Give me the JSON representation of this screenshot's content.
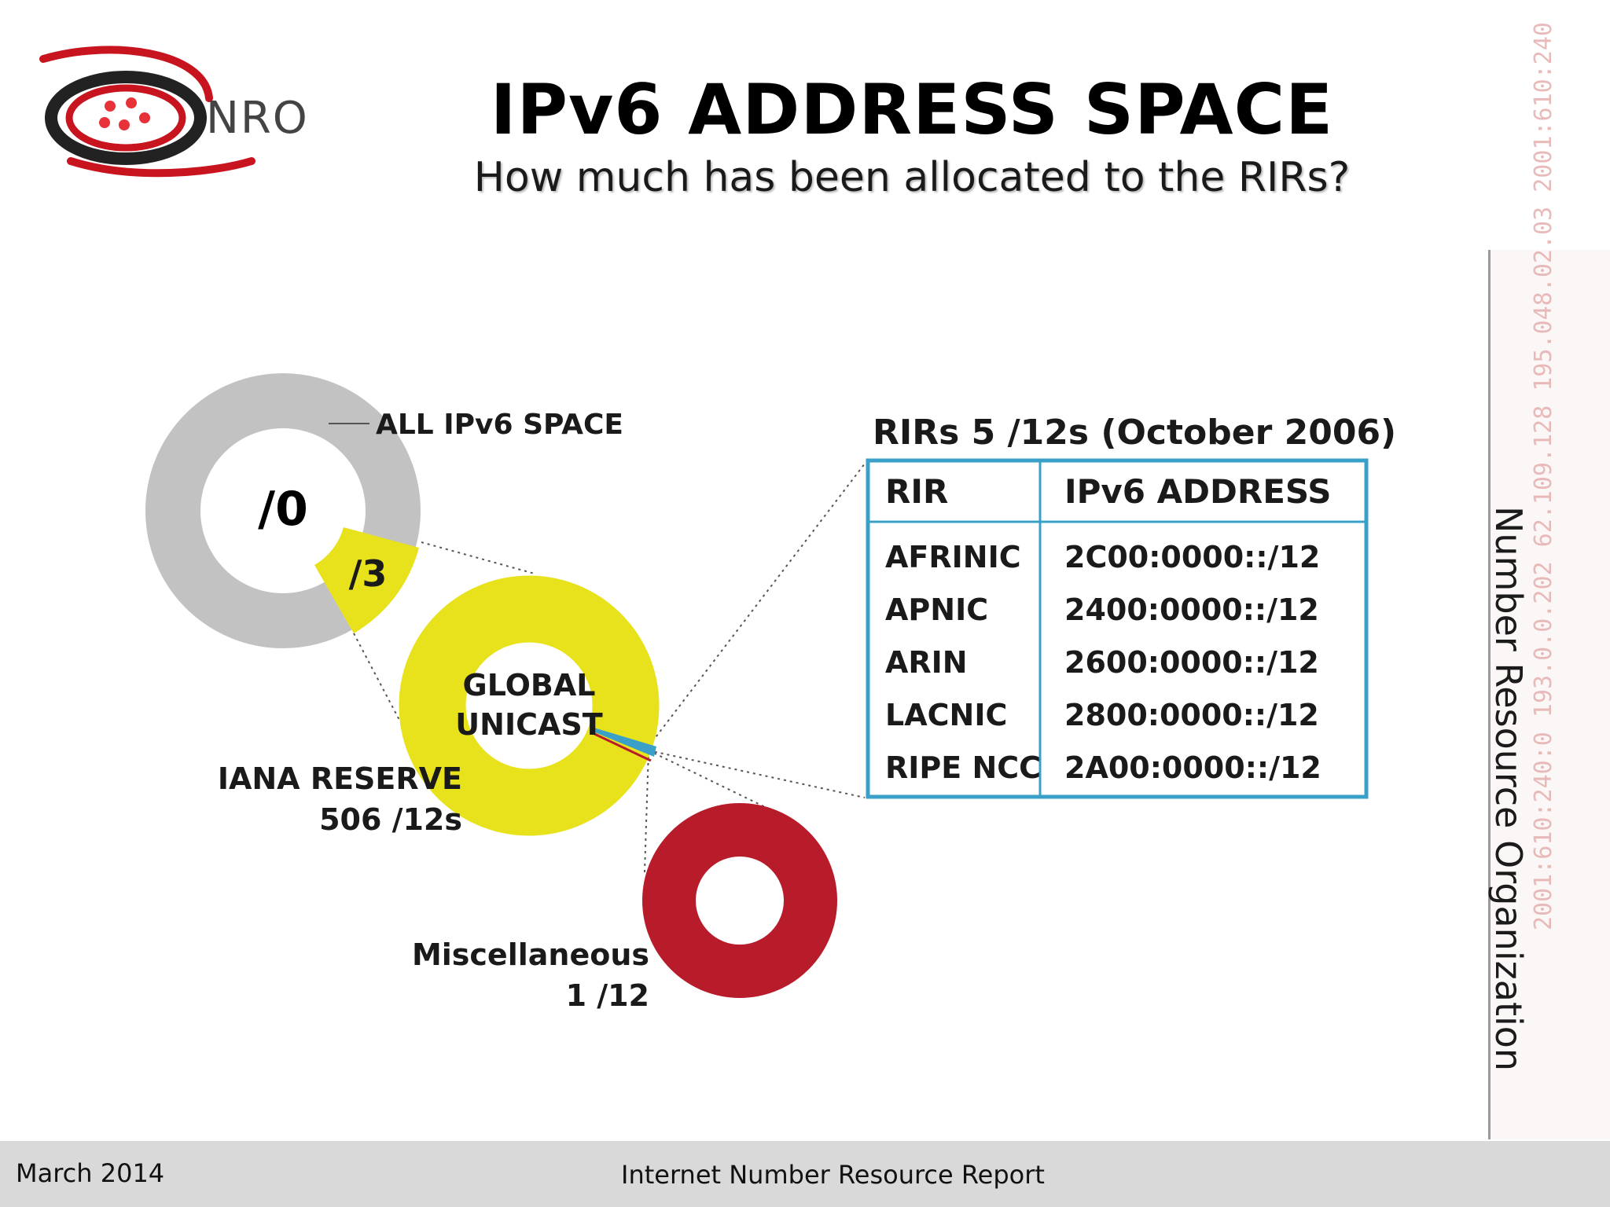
{
  "logo": {
    "text": "NRO"
  },
  "title": "IPv6 ADDRESS SPACE",
  "subtitle": "How much has been allocated to the RIRs?",
  "diagram": {
    "all_space_label": "ALL IPv6 SPACE",
    "root_label": "/0",
    "slice_label": "/3",
    "global_unicast_line1": "GLOBAL",
    "global_unicast_line2": "UNICAST",
    "iana_reserve_line1": "IANA RESERVE",
    "iana_reserve_line2": "506 /12s",
    "misc_line1": "Miscellaneous",
    "misc_line2": "1 /12",
    "colors": {
      "all_space": "#c2c2c2",
      "global_unicast": "#e8e21c",
      "misc": "#b81c2b",
      "table_border": "#3aa0c8"
    }
  },
  "rir_table": {
    "title": "RIRs 5 /12s (October 2006)",
    "headers": [
      "RIR",
      "IPv6 ADDRESS"
    ],
    "rows": [
      [
        "AFRINIC",
        "2C00:0000::/12"
      ],
      [
        "APNIC",
        "2400:0000::/12"
      ],
      [
        "ARIN",
        "2600:0000::/12"
      ],
      [
        "LACNIC",
        "2800:0000::/12"
      ],
      [
        "RIPE NCC",
        "2A00:0000::/12"
      ]
    ]
  },
  "side": {
    "organization": "Number Resource Organization",
    "watermark": "2001:610:240:0 193.0.0.202 62.109.128 195.048.02.03 2001:610:240"
  },
  "footer": {
    "date": "March 2014",
    "report": "Internet Number Resource Report"
  }
}
